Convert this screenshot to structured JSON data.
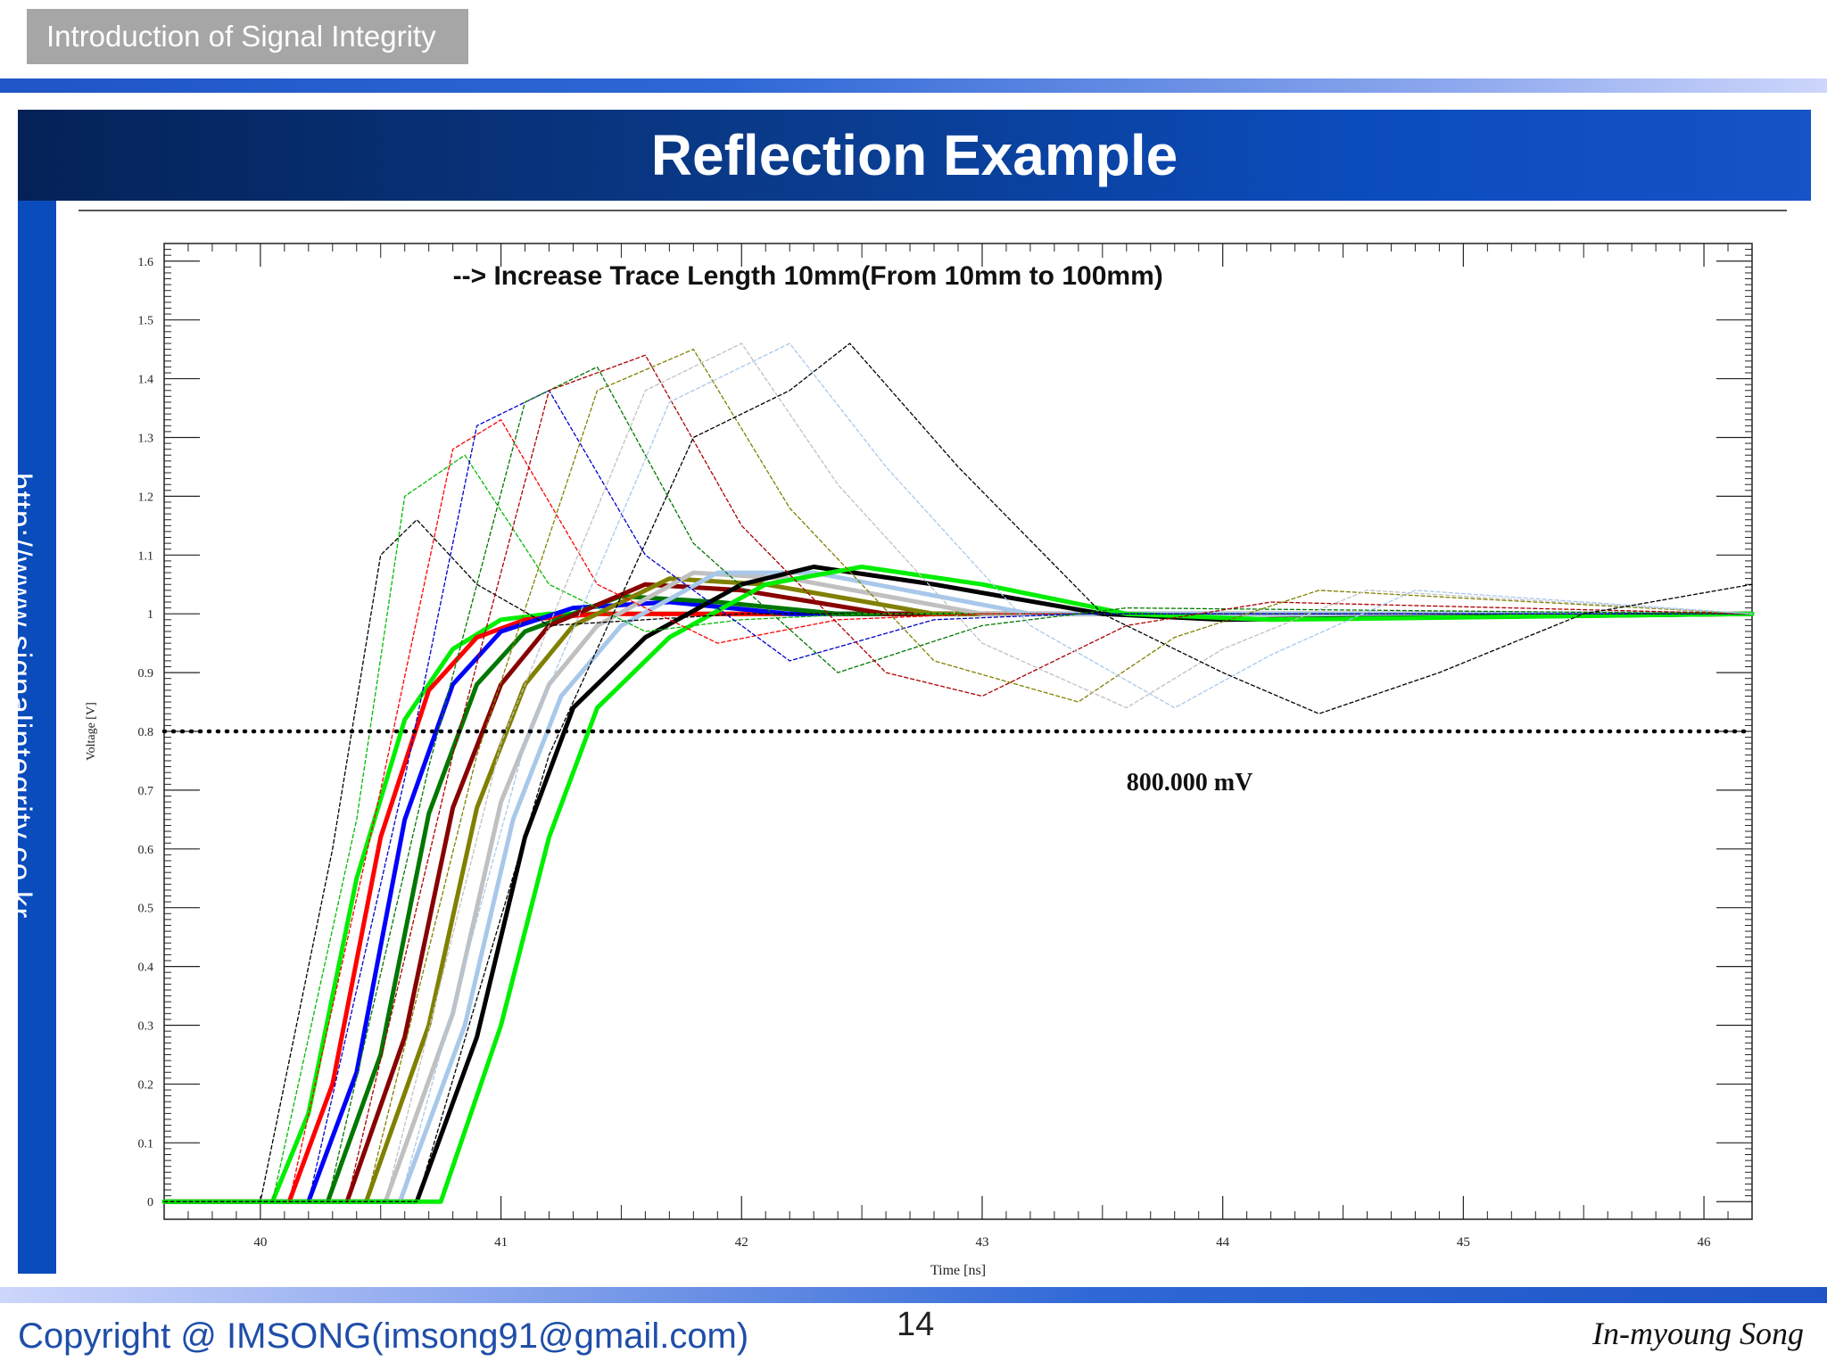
{
  "header": {
    "section_tag": "Introduction of Signal Integrity",
    "title": "Reflection Example"
  },
  "sidebar": {
    "url": "http://www.signalintegrity.co.kr"
  },
  "footer": {
    "copyright": "Copyright @ IMSONG(imsong91@gmail.com)",
    "page_number": "14",
    "author": "In-myoung Song"
  },
  "chart_data": {
    "type": "line",
    "annotation": "--> Increase Trace Length 10mm(From 10mm to 100mm)",
    "marker_label": "800.000 mV",
    "marker_value": 0.8,
    "xlabel": "Time [ns]",
    "ylabel": "Voltage [V]",
    "xlim": [
      39.6,
      46.2
    ],
    "ylim": [
      -0.03,
      1.63
    ],
    "x_ticks": [
      40,
      41,
      42,
      43,
      44,
      45,
      46
    ],
    "y_ticks": [
      0,
      0.1,
      0.2,
      0.3,
      0.4,
      0.5,
      0.6,
      0.7,
      0.8,
      0.9,
      1,
      1.1,
      1.2,
      1.3,
      1.4,
      1.5,
      1.6
    ],
    "y_tick_labels": [
      "0",
      "0.1",
      "0.2",
      "0.3",
      "0.4",
      "0.5",
      "0.6",
      "0.7",
      "0.8",
      "0.9",
      "1",
      "1.1",
      "1.2",
      "1.3",
      "1.4",
      "1.5",
      "1.6"
    ],
    "series": [
      {
        "style": "solid",
        "color": "#00ee00",
        "x": [
          39.6,
          40.05,
          40.2,
          40.4,
          40.6,
          40.8,
          41.0,
          41.2,
          41.5,
          42.0,
          46.2
        ],
        "y": [
          0,
          0,
          0.15,
          0.55,
          0.82,
          0.94,
          0.99,
          1.0,
          1.0,
          1.0,
          1.0
        ]
      },
      {
        "style": "solid",
        "color": "#ff0000",
        "x": [
          39.6,
          40.12,
          40.3,
          40.5,
          40.7,
          40.9,
          41.1,
          41.4,
          42.0,
          46.2
        ],
        "y": [
          0,
          0,
          0.2,
          0.62,
          0.87,
          0.96,
          0.99,
          1.0,
          1.0,
          1.0
        ]
      },
      {
        "style": "solid",
        "color": "#0000ff",
        "x": [
          39.6,
          40.2,
          40.4,
          40.6,
          40.8,
          41.0,
          41.3,
          41.7,
          42.2,
          46.2
        ],
        "y": [
          0,
          0,
          0.22,
          0.65,
          0.88,
          0.97,
          1.01,
          1.02,
          1.0,
          1.0
        ]
      },
      {
        "style": "solid",
        "color": "#007700",
        "x": [
          39.6,
          40.28,
          40.5,
          40.7,
          40.9,
          41.1,
          41.5,
          41.9,
          42.4,
          46.2
        ],
        "y": [
          0,
          0,
          0.25,
          0.66,
          0.88,
          0.97,
          1.03,
          1.02,
          1.0,
          1.0
        ]
      },
      {
        "style": "solid",
        "color": "#880000",
        "x": [
          39.6,
          40.36,
          40.6,
          40.8,
          41.0,
          41.2,
          41.6,
          42.0,
          42.6,
          46.2
        ],
        "y": [
          0,
          0,
          0.28,
          0.67,
          0.88,
          0.98,
          1.05,
          1.04,
          1.0,
          1.0
        ]
      },
      {
        "style": "solid",
        "color": "#808000",
        "x": [
          39.6,
          40.44,
          40.7,
          40.9,
          41.1,
          41.3,
          41.7,
          42.1,
          42.8,
          46.2
        ],
        "y": [
          0,
          0,
          0.3,
          0.67,
          0.88,
          0.98,
          1.06,
          1.05,
          1.0,
          1.0
        ]
      },
      {
        "style": "solid",
        "color": "#c0c0c0",
        "x": [
          39.6,
          40.52,
          40.8,
          41.0,
          41.2,
          41.4,
          41.8,
          42.2,
          43.0,
          46.2
        ],
        "y": [
          0,
          0,
          0.32,
          0.68,
          0.88,
          0.98,
          1.07,
          1.06,
          1.0,
          1.0
        ]
      },
      {
        "style": "solid",
        "color": "#a8c8ea",
        "x": [
          39.6,
          40.58,
          40.85,
          41.05,
          41.25,
          41.5,
          41.9,
          42.3,
          43.2,
          46.2
        ],
        "y": [
          0,
          0,
          0.3,
          0.65,
          0.86,
          0.98,
          1.07,
          1.07,
          1.0,
          1.0
        ]
      },
      {
        "style": "solid",
        "color": "#000000",
        "x": [
          39.6,
          40.65,
          40.9,
          41.1,
          41.3,
          41.6,
          42.0,
          42.3,
          42.8,
          43.5,
          44.0,
          46.2
        ],
        "y": [
          0,
          0,
          0.28,
          0.62,
          0.84,
          0.96,
          1.05,
          1.08,
          1.05,
          1.0,
          0.99,
          1.0
        ]
      },
      {
        "style": "solid",
        "color": "#00ee00",
        "x": [
          39.6,
          40.75,
          41.0,
          41.2,
          41.4,
          41.7,
          42.1,
          42.5,
          43.0,
          43.6,
          44.2,
          46.2
        ],
        "y": [
          0,
          0,
          0.3,
          0.62,
          0.84,
          0.96,
          1.05,
          1.08,
          1.05,
          1.0,
          0.99,
          1.0
        ]
      },
      {
        "style": "dashed",
        "color": "#000000",
        "x": [
          39.6,
          40.0,
          40.3,
          40.5,
          40.65,
          40.9,
          41.2,
          41.6,
          42.0,
          42.5,
          43.0,
          46.2
        ],
        "y": [
          0,
          0,
          0.6,
          1.1,
          1.16,
          1.05,
          0.98,
          0.99,
          1.0,
          1.0,
          1.0,
          1.0
        ]
      },
      {
        "style": "dashed",
        "color": "#00bb00",
        "x": [
          39.6,
          40.05,
          40.4,
          40.6,
          40.85,
          41.2,
          41.6,
          42.0,
          42.5,
          46.2
        ],
        "y": [
          0,
          0,
          0.65,
          1.2,
          1.27,
          1.05,
          0.97,
          0.99,
          1.0,
          1.0
        ]
      },
      {
        "style": "dashed",
        "color": "#ff0000",
        "x": [
          39.6,
          40.12,
          40.5,
          40.8,
          41.0,
          41.4,
          41.9,
          42.4,
          43.0,
          46.2
        ],
        "y": [
          0,
          0,
          0.7,
          1.28,
          1.33,
          1.05,
          0.95,
          0.99,
          1.0,
          1.0
        ]
      },
      {
        "style": "dashed",
        "color": "#0000cc",
        "x": [
          39.6,
          40.2,
          40.6,
          40.9,
          41.2,
          41.6,
          42.2,
          42.8,
          43.4,
          46.2
        ],
        "y": [
          0,
          0,
          0.72,
          1.32,
          1.38,
          1.1,
          0.92,
          0.99,
          1.0,
          1.0
        ]
      },
      {
        "style": "dashed",
        "color": "#007700",
        "x": [
          39.6,
          40.28,
          40.7,
          41.1,
          41.4,
          41.8,
          42.4,
          43.0,
          43.6,
          46.2
        ],
        "y": [
          0,
          0,
          0.74,
          1.36,
          1.42,
          1.12,
          0.9,
          0.98,
          1.01,
          1.0
        ]
      },
      {
        "style": "dashed",
        "color": "#aa0000",
        "x": [
          39.6,
          40.36,
          40.8,
          41.2,
          41.6,
          42.0,
          42.6,
          43.0,
          43.6,
          44.2,
          46.2
        ],
        "y": [
          0,
          0,
          0.76,
          1.38,
          1.44,
          1.15,
          0.9,
          0.86,
          0.98,
          1.02,
          1.0
        ]
      },
      {
        "style": "dashed",
        "color": "#808000",
        "x": [
          39.6,
          40.44,
          40.9,
          41.4,
          41.8,
          42.2,
          42.8,
          43.4,
          43.8,
          44.4,
          46.2
        ],
        "y": [
          0,
          0,
          0.76,
          1.38,
          1.45,
          1.18,
          0.92,
          0.85,
          0.96,
          1.04,
          1.0
        ]
      },
      {
        "style": "dashed",
        "color": "#c0c0c0",
        "x": [
          39.6,
          40.52,
          41.0,
          41.6,
          42.0,
          42.4,
          43.0,
          43.6,
          44.0,
          44.6,
          46.2
        ],
        "y": [
          0,
          0,
          0.78,
          1.38,
          1.46,
          1.22,
          0.95,
          0.84,
          0.94,
          1.04,
          1.0
        ]
      },
      {
        "style": "dashed",
        "color": "#a8c8ea",
        "x": [
          39.6,
          40.58,
          41.1,
          41.7,
          42.2,
          42.6,
          43.2,
          43.8,
          44.2,
          44.8,
          46.2
        ],
        "y": [
          0,
          0,
          0.78,
          1.36,
          1.46,
          1.25,
          0.98,
          0.84,
          0.93,
          1.04,
          1.0
        ]
      },
      {
        "style": "dashed",
        "color": "#000000",
        "x": [
          39.6,
          40.65,
          41.2,
          41.8,
          42.2,
          42.45,
          42.9,
          43.5,
          44.0,
          44.4,
          44.9,
          45.5,
          46.2
        ],
        "y": [
          0,
          0,
          0.76,
          1.3,
          1.38,
          1.46,
          1.25,
          1.0,
          0.9,
          0.83,
          0.9,
          1.0,
          1.05
        ]
      }
    ]
  }
}
